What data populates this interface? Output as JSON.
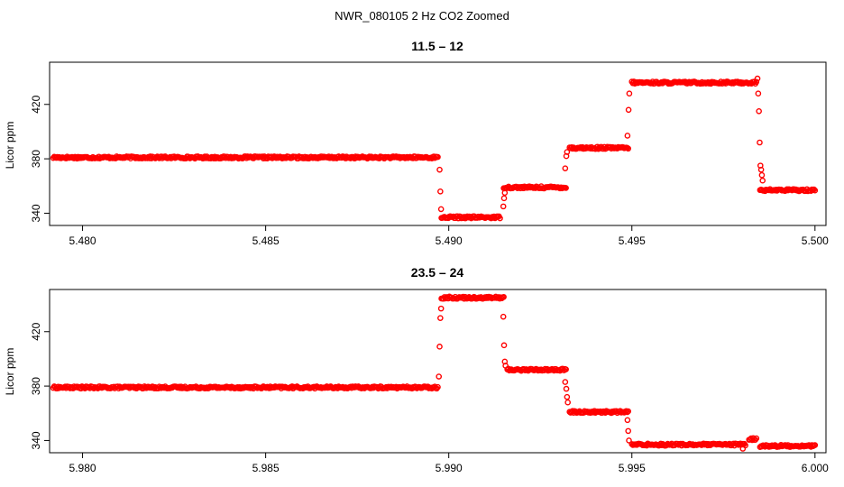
{
  "figure_title": "NWR_080105  2 Hz CO2 Zoomed",
  "colors": {
    "points": "#ff0000",
    "axes": "#000000",
    "background": "#ffffff"
  },
  "chart_data": [
    {
      "type": "scatter",
      "title": "11.5 – 12",
      "xlabel": "",
      "ylabel": "Licor ppm",
      "xlim": [
        5.4791,
        5.5003
      ],
      "ylim": [
        331,
        451
      ],
      "xticks": [
        5.48,
        5.485,
        5.49,
        5.495,
        5.5
      ],
      "xtick_labels": [
        "5.480",
        "5.485",
        "5.490",
        "5.495",
        "5.500"
      ],
      "yticks": [
        340,
        380,
        420
      ],
      "ytick_labels": [
        "340",
        "380",
        "420"
      ],
      "grid": false,
      "marker": "open-circle",
      "segments": [
        {
          "x_start": 5.4792,
          "x_end": 5.4897,
          "y": 381
        },
        {
          "x_start": 5.4898,
          "x_end": 5.4914,
          "y": 337
        },
        {
          "x_start": 5.4915,
          "x_end": 5.4932,
          "y": 359
        },
        {
          "x_start": 5.4933,
          "x_end": 5.4949,
          "y": 388
        },
        {
          "x_start": 5.495,
          "x_end": 5.4984,
          "y": 436
        },
        {
          "x_start": 5.4985,
          "x_end": 5.5,
          "y": 357
        }
      ],
      "transition_points": [
        {
          "x": 5.48975,
          "y": 372
        },
        {
          "x": 5.48977,
          "y": 356
        },
        {
          "x": 5.48979,
          "y": 343
        },
        {
          "x": 5.49149,
          "y": 345
        },
        {
          "x": 5.49151,
          "y": 351
        },
        {
          "x": 5.49153,
          "y": 355
        },
        {
          "x": 5.49318,
          "y": 373
        },
        {
          "x": 5.49321,
          "y": 382
        },
        {
          "x": 5.49323,
          "y": 385
        },
        {
          "x": 5.49488,
          "y": 397
        },
        {
          "x": 5.49491,
          "y": 416
        },
        {
          "x": 5.49493,
          "y": 428
        },
        {
          "x": 5.49843,
          "y": 439
        },
        {
          "x": 5.49845,
          "y": 428
        },
        {
          "x": 5.49847,
          "y": 415
        },
        {
          "x": 5.49849,
          "y": 392
        },
        {
          "x": 5.49851,
          "y": 375
        },
        {
          "x": 5.49853,
          "y": 372
        },
        {
          "x": 5.49855,
          "y": 368
        },
        {
          "x": 5.49857,
          "y": 364
        }
      ]
    },
    {
      "type": "scatter",
      "title": "23.5 – 24",
      "xlabel": "",
      "ylabel": "Licor ppm",
      "xlim": [
        5.9791,
        6.0003
      ],
      "ylim": [
        331,
        451
      ],
      "xticks": [
        5.98,
        5.985,
        5.99,
        5.995,
        6.0
      ],
      "xtick_labels": [
        "5.980",
        "5.985",
        "5.990",
        "5.995",
        "6.000"
      ],
      "yticks": [
        340,
        380,
        420
      ],
      "ytick_labels": [
        "340",
        "380",
        "420"
      ],
      "grid": false,
      "marker": "open-circle",
      "segments": [
        {
          "x_start": 5.9792,
          "x_end": 5.9897,
          "y": 379
        },
        {
          "x_start": 5.9898,
          "x_end": 5.9915,
          "y": 445
        },
        {
          "x_start": 5.9916,
          "x_end": 5.9932,
          "y": 392
        },
        {
          "x_start": 5.9933,
          "x_end": 5.9949,
          "y": 361
        },
        {
          "x_start": 5.995,
          "x_end": 5.9981,
          "y": 337
        },
        {
          "x_start": 5.9982,
          "x_end": 5.9984,
          "y": 341
        },
        {
          "x_start": 5.9985,
          "x_end": 6.0,
          "y": 336
        }
      ],
      "transition_points": [
        {
          "x": 5.98973,
          "y": 387
        },
        {
          "x": 5.98975,
          "y": 409
        },
        {
          "x": 5.98977,
          "y": 430
        },
        {
          "x": 5.98979,
          "y": 437
        },
        {
          "x": 5.99149,
          "y": 431
        },
        {
          "x": 5.99151,
          "y": 410
        },
        {
          "x": 5.99153,
          "y": 398
        },
        {
          "x": 5.99155,
          "y": 395
        },
        {
          "x": 5.99318,
          "y": 383
        },
        {
          "x": 5.99321,
          "y": 378
        },
        {
          "x": 5.99323,
          "y": 372
        },
        {
          "x": 5.99325,
          "y": 368
        },
        {
          "x": 5.99488,
          "y": 355
        },
        {
          "x": 5.9949,
          "y": 347
        },
        {
          "x": 5.99492,
          "y": 340
        },
        {
          "x": 5.99803,
          "y": 334
        }
      ]
    }
  ]
}
